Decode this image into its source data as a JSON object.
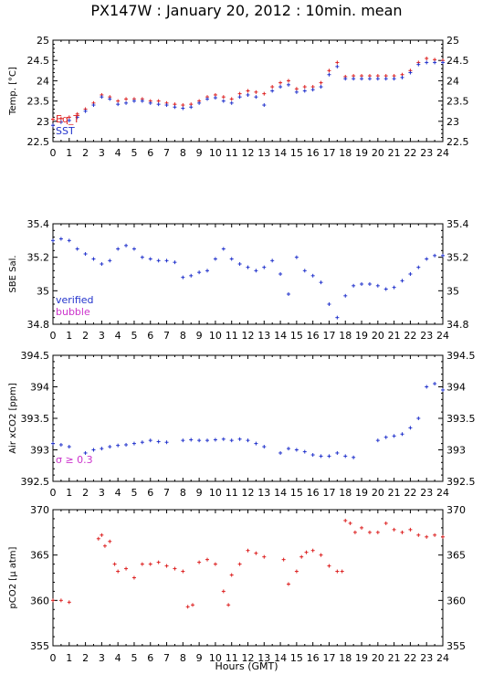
{
  "title": "PX147W : January 20, 2012 : 10min. mean",
  "xlabel": "Hours (GMT)",
  "x_ticks": [
    0,
    1,
    2,
    3,
    4,
    5,
    6,
    7,
    8,
    9,
    10,
    11,
    12,
    13,
    14,
    15,
    16,
    17,
    18,
    19,
    20,
    21,
    22,
    23,
    24
  ],
  "colors": {
    "red": "#dd2222",
    "blue": "#2233cc",
    "magenta": "#cc33cc"
  },
  "chart_data": [
    {
      "type": "scatter",
      "ylabel": "Temp. [°C]",
      "ylim": [
        22.5,
        25
      ],
      "y_ticks": [
        "22.5",
        "23",
        "23.5",
        "24",
        "24.5",
        "25"
      ],
      "legend": [
        "Eq_T",
        "SST"
      ],
      "series": [
        {
          "name": "Eq_T",
          "color": "red",
          "x": [
            0,
            0.5,
            1,
            1.5,
            2,
            2.5,
            3,
            3.5,
            4,
            4.5,
            5,
            5.5,
            6,
            6.5,
            7,
            7.5,
            8,
            8.5,
            9,
            9.5,
            10,
            10.5,
            11,
            11.5,
            12,
            12.5,
            13,
            13.5,
            14,
            14.5,
            15,
            15.5,
            16,
            16.5,
            17,
            17.5,
            18,
            18.5,
            19,
            19.5,
            20,
            20.5,
            21,
            21.5,
            22,
            22.5,
            23,
            23.5,
            24
          ],
          "y": [
            23.05,
            23.07,
            23.1,
            23.18,
            23.3,
            23.45,
            23.65,
            23.6,
            23.5,
            23.55,
            23.55,
            23.55,
            23.5,
            23.5,
            23.45,
            23.42,
            23.4,
            23.42,
            23.5,
            23.6,
            23.65,
            23.6,
            23.55,
            23.68,
            23.75,
            23.72,
            23.68,
            23.85,
            23.95,
            24.0,
            23.8,
            23.85,
            23.85,
            23.95,
            24.25,
            24.45,
            24.1,
            24.12,
            24.12,
            24.12,
            24.12,
            24.12,
            24.12,
            24.15,
            24.25,
            24.45,
            24.55,
            24.52,
            24.5
          ]
        },
        {
          "name": "SST",
          "color": "blue",
          "x": [
            0,
            0.5,
            1,
            1.5,
            2,
            2.5,
            3,
            3.5,
            4,
            4.5,
            5,
            5.5,
            6,
            6.5,
            7,
            7.5,
            8,
            8.5,
            9,
            9.5,
            10,
            10.5,
            11,
            11.5,
            12,
            12.5,
            13,
            13.5,
            14,
            14.5,
            15,
            15.5,
            16,
            16.5,
            17,
            17.5,
            18,
            18.5,
            19,
            19.5,
            20,
            20.5,
            21,
            21.5,
            22,
            22.5,
            23,
            23.5,
            24
          ],
          "y": [
            22.9,
            22.98,
            23.02,
            23.1,
            23.25,
            23.4,
            23.6,
            23.55,
            23.42,
            23.45,
            23.5,
            23.5,
            23.45,
            23.42,
            23.4,
            23.35,
            23.32,
            23.35,
            23.45,
            23.55,
            23.58,
            23.5,
            23.45,
            23.6,
            23.65,
            23.6,
            23.4,
            23.75,
            23.85,
            23.9,
            23.72,
            23.75,
            23.78,
            23.85,
            24.15,
            24.35,
            24.05,
            24.05,
            24.05,
            24.05,
            24.05,
            24.05,
            24.05,
            24.08,
            24.2,
            24.4,
            24.45,
            24.45,
            24.45
          ]
        }
      ]
    },
    {
      "type": "scatter",
      "ylabel": "SBE Sal.",
      "ylim": [
        34.8,
        35.4
      ],
      "y_ticks": [
        "34.8",
        "35",
        "35.2",
        "35.4"
      ],
      "legend": [
        "verified",
        "bubble"
      ],
      "series": [
        {
          "name": "verified",
          "color": "blue",
          "x": [
            0,
            0.5,
            1,
            1.5,
            2,
            2.5,
            3,
            3.5,
            4,
            4.5,
            5,
            5.5,
            6,
            6.5,
            7,
            7.5,
            8,
            8.5,
            9,
            9.5,
            10,
            10.5,
            11,
            11.5,
            12,
            12.5,
            13,
            13.5,
            14,
            14.5,
            15,
            15.5,
            16,
            16.5,
            17,
            17.5,
            18,
            18.5,
            19,
            19.5,
            20,
            20.5,
            21,
            21.5,
            22,
            22.5,
            23,
            23.5,
            24
          ],
          "y": [
            35.3,
            35.31,
            35.3,
            35.25,
            35.22,
            35.19,
            35.16,
            35.18,
            35.25,
            35.27,
            35.25,
            35.2,
            35.19,
            35.18,
            35.18,
            35.17,
            35.08,
            35.09,
            35.11,
            35.12,
            35.19,
            35.25,
            35.19,
            35.16,
            35.14,
            35.12,
            35.14,
            35.18,
            35.1,
            34.98,
            35.2,
            35.12,
            35.09,
            35.05,
            34.92,
            34.84,
            34.97,
            35.03,
            35.04,
            35.04,
            35.03,
            35.01,
            35.02,
            35.06,
            35.1,
            35.14,
            35.19,
            35.21,
            35.21
          ]
        }
      ]
    },
    {
      "type": "scatter",
      "ylabel": "Air xCO2 [ppm]",
      "ylim": [
        392.5,
        394.5
      ],
      "y_ticks": [
        "392.5",
        "393",
        "393.5",
        "394",
        "394.5"
      ],
      "annotation": "σ ≥ 0.3",
      "series": [
        {
          "name": "",
          "color": "blue",
          "x": [
            0,
            0.5,
            1,
            2,
            2.5,
            3,
            3.5,
            4,
            4.5,
            5,
            5.5,
            6,
            6.5,
            7,
            8,
            8.5,
            9,
            9.5,
            10,
            10.5,
            11,
            11.5,
            12,
            12.5,
            13,
            14,
            14.5,
            15,
            15.5,
            16,
            16.5,
            17,
            17.5,
            18,
            18.5,
            20,
            20.5,
            21,
            21.5,
            22,
            22.5,
            23,
            23.5,
            24
          ],
          "y": [
            393.1,
            393.08,
            393.05,
            392.95,
            393.0,
            393.02,
            393.05,
            393.07,
            393.08,
            393.1,
            393.12,
            393.15,
            393.13,
            393.12,
            393.15,
            393.16,
            393.15,
            393.15,
            393.16,
            393.17,
            393.15,
            393.17,
            393.15,
            393.1,
            393.05,
            392.95,
            393.02,
            393.0,
            392.97,
            392.92,
            392.9,
            392.9,
            392.95,
            392.9,
            392.88,
            393.15,
            393.2,
            393.22,
            393.25,
            393.35,
            393.5,
            394.0,
            394.05,
            393.95
          ]
        }
      ]
    },
    {
      "type": "scatter",
      "ylabel": "pCO2 [μ atm]",
      "ylim": [
        355,
        370
      ],
      "y_ticks": [
        "355",
        "360",
        "365",
        "370"
      ],
      "series": [
        {
          "name": "",
          "color": "red",
          "x": [
            0,
            0.5,
            1,
            2.8,
            3,
            3.2,
            3.5,
            3.8,
            4,
            4.5,
            5,
            5.5,
            6,
            6.5,
            7,
            7.5,
            8,
            8.3,
            8.6,
            9,
            9.5,
            10,
            10.5,
            10.8,
            11,
            11.5,
            12,
            12.5,
            13,
            14.2,
            14.5,
            15,
            15.3,
            15.6,
            16,
            16.5,
            17,
            17.5,
            17.8,
            18,
            18.3,
            18.6,
            19,
            19.5,
            20,
            20.5,
            21,
            21.5,
            22,
            22.5,
            23,
            23.5,
            24
          ],
          "y": [
            360,
            360,
            359.8,
            366.8,
            367.2,
            366,
            366.5,
            364,
            363.2,
            363.5,
            362.5,
            364,
            364,
            364.2,
            363.8,
            363.5,
            363.2,
            359.3,
            359.5,
            364.2,
            364.5,
            364,
            361,
            359.5,
            362.8,
            364,
            365.5,
            365.2,
            364.8,
            364.5,
            361.8,
            363.2,
            364.8,
            365.3,
            365.5,
            365,
            363.8,
            363.2,
            363.2,
            368.8,
            368.5,
            367.5,
            368,
            367.5,
            367.5,
            368.5,
            367.8,
            367.5,
            367.8,
            367.2,
            367,
            367.2,
            367
          ]
        }
      ]
    }
  ]
}
